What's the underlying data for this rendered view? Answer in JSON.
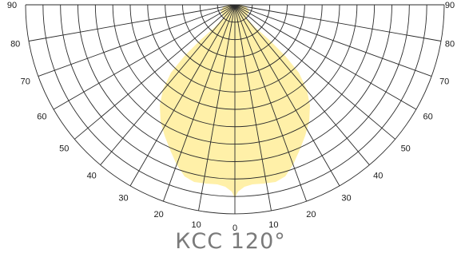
{
  "diagram": {
    "title": "КСС 120°",
    "light_color": "#fff0a8",
    "grid_color": "#2b2b2b",
    "angle_labels_left": [
      "90",
      "80",
      "70",
      "60",
      "50",
      "40",
      "30",
      "20",
      "10"
    ],
    "center_label": "0",
    "angle_labels_right": [
      "10",
      "20",
      "30",
      "40",
      "50",
      "60",
      "70",
      "80",
      "90"
    ]
  }
}
